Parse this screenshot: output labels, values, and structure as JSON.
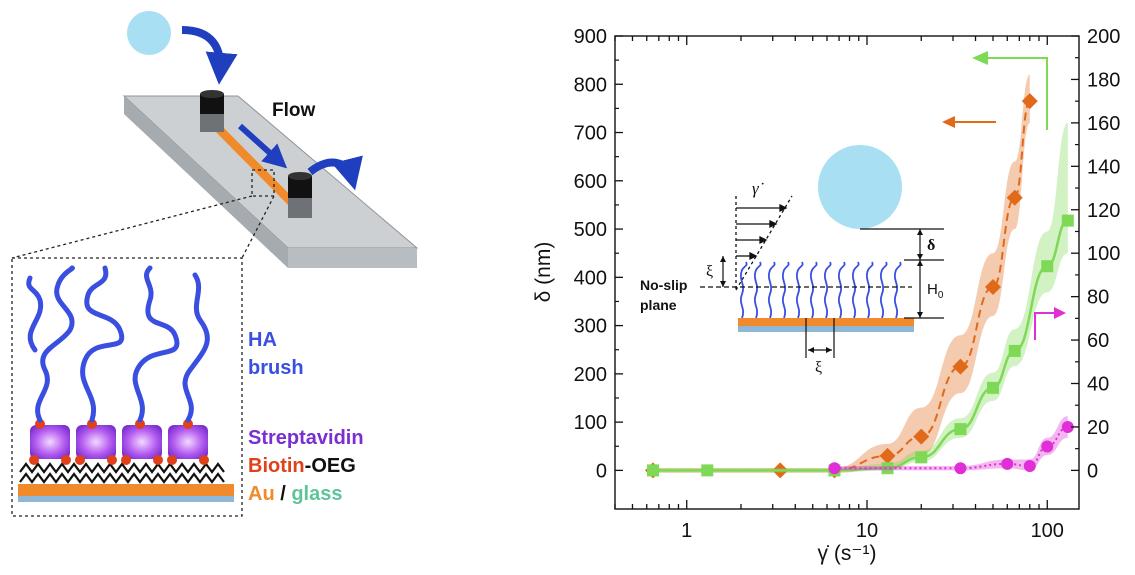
{
  "left_panel": {
    "flow_label": "Flow",
    "legend": {
      "ha_line1": "HA",
      "ha_line2": "brush",
      "streptavidin": "Streptavidin",
      "biotin": "Biotin",
      "oeg": "-OEG",
      "au": "Au",
      "slash": " / ",
      "glass": "glass"
    },
    "colors": {
      "ha": "#3a4fe0",
      "streptavidin": "#7a2fd0",
      "biotin": "#e0401a",
      "au": "#f08a2a",
      "glass": "#5ec49a",
      "slide": "#c9cccf",
      "arrow": "#1f3fbf",
      "bead": "#a9dff2"
    }
  },
  "chart_data": {
    "type": "scatter",
    "x_scale": "log",
    "xlim": [
      0.4,
      150
    ],
    "x_ticks": [
      1,
      10,
      100
    ],
    "x_tick_labels": [
      "1",
      "10",
      "100"
    ],
    "ylim": [
      -80,
      900
    ],
    "y_ticks": [
      0,
      100,
      200,
      300,
      400,
      500,
      600,
      700,
      800,
      900
    ],
    "y_tick_labels": [
      "0",
      "100",
      "200",
      "300",
      "400",
      "500",
      "600",
      "700",
      "800",
      "900"
    ],
    "y2lim": [
      -17.78,
      200
    ],
    "y2_ticks": [
      0,
      20,
      40,
      60,
      80,
      100,
      120,
      140,
      160,
      180,
      200
    ],
    "y2_tick_labels": [
      "0",
      "20",
      "40",
      "60",
      "80",
      "100",
      "120",
      "140",
      "160",
      "180",
      "200"
    ],
    "xlabel": "γ̇ (s⁻¹)",
    "ylabel": "δ (nm)",
    "series": [
      {
        "color": "#e06a1a",
        "marker": "diamond",
        "axis": "left",
        "x": [
          0.65,
          3.3,
          6.6,
          13,
          20,
          33,
          50,
          66,
          80
        ],
        "y": [
          0,
          0,
          0,
          30,
          70,
          215,
          380,
          565,
          765
        ],
        "band_upper": [
          5,
          5,
          5,
          55,
          130,
          280,
          450,
          640,
          820
        ],
        "band_lower": [
          -5,
          -5,
          -5,
          5,
          30,
          160,
          320,
          500,
          720
        ]
      },
      {
        "color": "#7ed957",
        "marker": "square",
        "axis": "right",
        "x": [
          0.65,
          1.3,
          6.6,
          13,
          20,
          33,
          50,
          66,
          100,
          130
        ],
        "y": [
          0,
          0,
          0,
          1,
          6,
          19,
          38,
          55,
          94,
          115
        ],
        "band_upper": [
          1,
          1,
          1,
          3,
          9,
          24,
          45,
          65,
          110,
          160
        ],
        "band_lower": [
          -1,
          -1,
          -1,
          0,
          4,
          15,
          32,
          48,
          82,
          100
        ]
      },
      {
        "color": "#e02fd6",
        "marker": "circle",
        "axis": "right",
        "x": [
          6.6,
          33,
          60,
          80,
          100,
          130
        ],
        "y": [
          1,
          1,
          3,
          2,
          11,
          20
        ],
        "band_upper": [
          2,
          2,
          5,
          5,
          15,
          25
        ],
        "band_lower": [
          0,
          0,
          1,
          0,
          7,
          15
        ]
      }
    ],
    "inset": {
      "shear_label": "γ̇",
      "xi": "ξ",
      "delta": "δ",
      "h0": "H",
      "h0_sub": "0",
      "no_slip_line1": "No-slip",
      "no_slip_line2": "plane"
    }
  }
}
